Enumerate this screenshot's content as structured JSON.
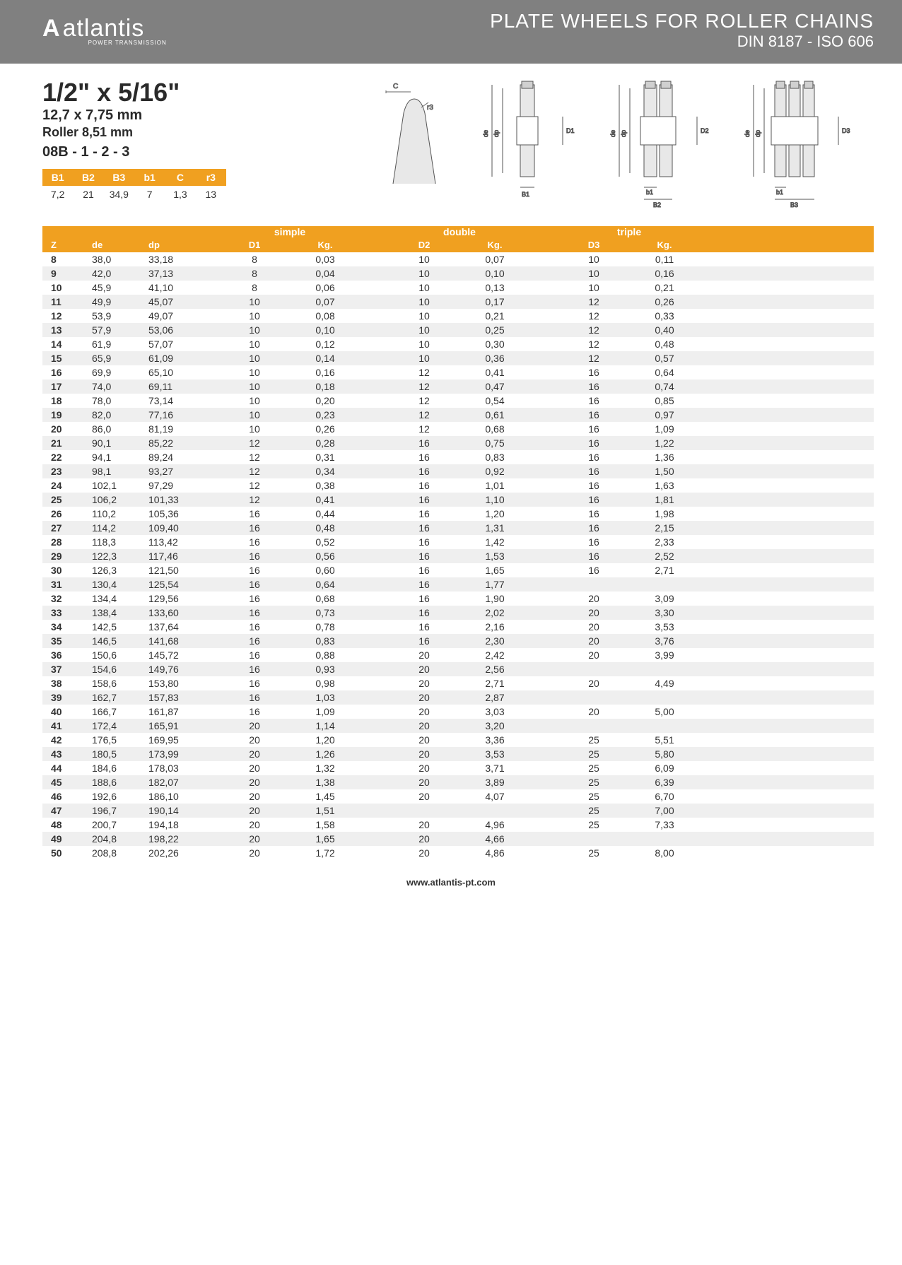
{
  "header": {
    "logo_icon": "A",
    "logo_text": "atlantis",
    "logo_sub": "POWER TRANSMISSION",
    "title1": "PLATE WHEELS FOR ROLLER CHAINS",
    "title2": "DIN 8187 - ISO 606"
  },
  "spec": {
    "size": "1/2\" x 5/16\"",
    "mm": "12,7 x 7,75 mm",
    "roller": "Roller 8,51 mm",
    "code": "08B - 1 - 2 - 3"
  },
  "smallTable": {
    "headers": [
      "B1",
      "B2",
      "B3",
      "b1",
      "C",
      "r3"
    ],
    "values": [
      "7,2",
      "21",
      "34,9",
      "7",
      "1,3",
      "13"
    ]
  },
  "mainHeaders": {
    "z": "Z",
    "de": "de",
    "dp": "dp",
    "simple": "simple",
    "double": "double",
    "triple": "triple",
    "d1": "D1",
    "d2": "D2",
    "d3": "D3",
    "kg": "Kg."
  },
  "rows": [
    {
      "z": "8",
      "de": "38,0",
      "dp": "33,18",
      "d1": "8",
      "k1": "0,03",
      "d2": "10",
      "k2": "0,07",
      "d3": "10",
      "k3": "0,11"
    },
    {
      "z": "9",
      "de": "42,0",
      "dp": "37,13",
      "d1": "8",
      "k1": "0,04",
      "d2": "10",
      "k2": "0,10",
      "d3": "10",
      "k3": "0,16"
    },
    {
      "z": "10",
      "de": "45,9",
      "dp": "41,10",
      "d1": "8",
      "k1": "0,06",
      "d2": "10",
      "k2": "0,13",
      "d3": "10",
      "k3": "0,21"
    },
    {
      "z": "11",
      "de": "49,9",
      "dp": "45,07",
      "d1": "10",
      "k1": "0,07",
      "d2": "10",
      "k2": "0,17",
      "d3": "12",
      "k3": "0,26"
    },
    {
      "z": "12",
      "de": "53,9",
      "dp": "49,07",
      "d1": "10",
      "k1": "0,08",
      "d2": "10",
      "k2": "0,21",
      "d3": "12",
      "k3": "0,33"
    },
    {
      "z": "13",
      "de": "57,9",
      "dp": "53,06",
      "d1": "10",
      "k1": "0,10",
      "d2": "10",
      "k2": "0,25",
      "d3": "12",
      "k3": "0,40"
    },
    {
      "z": "14",
      "de": "61,9",
      "dp": "57,07",
      "d1": "10",
      "k1": "0,12",
      "d2": "10",
      "k2": "0,30",
      "d3": "12",
      "k3": "0,48"
    },
    {
      "z": "15",
      "de": "65,9",
      "dp": "61,09",
      "d1": "10",
      "k1": "0,14",
      "d2": "10",
      "k2": "0,36",
      "d3": "12",
      "k3": "0,57"
    },
    {
      "z": "16",
      "de": "69,9",
      "dp": "65,10",
      "d1": "10",
      "k1": "0,16",
      "d2": "12",
      "k2": "0,41",
      "d3": "16",
      "k3": "0,64"
    },
    {
      "z": "17",
      "de": "74,0",
      "dp": "69,11",
      "d1": "10",
      "k1": "0,18",
      "d2": "12",
      "k2": "0,47",
      "d3": "16",
      "k3": "0,74"
    },
    {
      "z": "18",
      "de": "78,0",
      "dp": "73,14",
      "d1": "10",
      "k1": "0,20",
      "d2": "12",
      "k2": "0,54",
      "d3": "16",
      "k3": "0,85"
    },
    {
      "z": "19",
      "de": "82,0",
      "dp": "77,16",
      "d1": "10",
      "k1": "0,23",
      "d2": "12",
      "k2": "0,61",
      "d3": "16",
      "k3": "0,97"
    },
    {
      "z": "20",
      "de": "86,0",
      "dp": "81,19",
      "d1": "10",
      "k1": "0,26",
      "d2": "12",
      "k2": "0,68",
      "d3": "16",
      "k3": "1,09"
    },
    {
      "z": "21",
      "de": "90,1",
      "dp": "85,22",
      "d1": "12",
      "k1": "0,28",
      "d2": "16",
      "k2": "0,75",
      "d3": "16",
      "k3": "1,22"
    },
    {
      "z": "22",
      "de": "94,1",
      "dp": "89,24",
      "d1": "12",
      "k1": "0,31",
      "d2": "16",
      "k2": "0,83",
      "d3": "16",
      "k3": "1,36"
    },
    {
      "z": "23",
      "de": "98,1",
      "dp": "93,27",
      "d1": "12",
      "k1": "0,34",
      "d2": "16",
      "k2": "0,92",
      "d3": "16",
      "k3": "1,50"
    },
    {
      "z": "24",
      "de": "102,1",
      "dp": "97,29",
      "d1": "12",
      "k1": "0,38",
      "d2": "16",
      "k2": "1,01",
      "d3": "16",
      "k3": "1,63"
    },
    {
      "z": "25",
      "de": "106,2",
      "dp": "101,33",
      "d1": "12",
      "k1": "0,41",
      "d2": "16",
      "k2": "1,10",
      "d3": "16",
      "k3": "1,81"
    },
    {
      "z": "26",
      "de": "110,2",
      "dp": "105,36",
      "d1": "16",
      "k1": "0,44",
      "d2": "16",
      "k2": "1,20",
      "d3": "16",
      "k3": "1,98"
    },
    {
      "z": "27",
      "de": "114,2",
      "dp": "109,40",
      "d1": "16",
      "k1": "0,48",
      "d2": "16",
      "k2": "1,31",
      "d3": "16",
      "k3": "2,15"
    },
    {
      "z": "28",
      "de": "118,3",
      "dp": "113,42",
      "d1": "16",
      "k1": "0,52",
      "d2": "16",
      "k2": "1,42",
      "d3": "16",
      "k3": "2,33"
    },
    {
      "z": "29",
      "de": "122,3",
      "dp": "117,46",
      "d1": "16",
      "k1": "0,56",
      "d2": "16",
      "k2": "1,53",
      "d3": "16",
      "k3": "2,52"
    },
    {
      "z": "30",
      "de": "126,3",
      "dp": "121,50",
      "d1": "16",
      "k1": "0,60",
      "d2": "16",
      "k2": "1,65",
      "d3": "16",
      "k3": "2,71"
    },
    {
      "z": "31",
      "de": "130,4",
      "dp": "125,54",
      "d1": "16",
      "k1": "0,64",
      "d2": "16",
      "k2": "1,77",
      "d3": "",
      "k3": ""
    },
    {
      "z": "32",
      "de": "134,4",
      "dp": "129,56",
      "d1": "16",
      "k1": "0,68",
      "d2": "16",
      "k2": "1,90",
      "d3": "20",
      "k3": "3,09"
    },
    {
      "z": "33",
      "de": "138,4",
      "dp": "133,60",
      "d1": "16",
      "k1": "0,73",
      "d2": "16",
      "k2": "2,02",
      "d3": "20",
      "k3": "3,30"
    },
    {
      "z": "34",
      "de": "142,5",
      "dp": "137,64",
      "d1": "16",
      "k1": "0,78",
      "d2": "16",
      "k2": "2,16",
      "d3": "20",
      "k3": "3,53"
    },
    {
      "z": "35",
      "de": "146,5",
      "dp": "141,68",
      "d1": "16",
      "k1": "0,83",
      "d2": "16",
      "k2": "2,30",
      "d3": "20",
      "k3": "3,76"
    },
    {
      "z": "36",
      "de": "150,6",
      "dp": "145,72",
      "d1": "16",
      "k1": "0,88",
      "d2": "20",
      "k2": "2,42",
      "d3": "20",
      "k3": "3,99"
    },
    {
      "z": "37",
      "de": "154,6",
      "dp": "149,76",
      "d1": "16",
      "k1": "0,93",
      "d2": "20",
      "k2": "2,56",
      "d3": "",
      "k3": ""
    },
    {
      "z": "38",
      "de": "158,6",
      "dp": "153,80",
      "d1": "16",
      "k1": "0,98",
      "d2": "20",
      "k2": "2,71",
      "d3": "20",
      "k3": "4,49"
    },
    {
      "z": "39",
      "de": "162,7",
      "dp": "157,83",
      "d1": "16",
      "k1": "1,03",
      "d2": "20",
      "k2": "2,87",
      "d3": "",
      "k3": ""
    },
    {
      "z": "40",
      "de": "166,7",
      "dp": "161,87",
      "d1": "16",
      "k1": "1,09",
      "d2": "20",
      "k2": "3,03",
      "d3": "20",
      "k3": "5,00"
    },
    {
      "z": "41",
      "de": "172,4",
      "dp": "165,91",
      "d1": "20",
      "k1": "1,14",
      "d2": "20",
      "k2": "3,20",
      "d3": "",
      "k3": ""
    },
    {
      "z": "42",
      "de": "176,5",
      "dp": "169,95",
      "d1": "20",
      "k1": "1,20",
      "d2": "20",
      "k2": "3,36",
      "d3": "25",
      "k3": "5,51"
    },
    {
      "z": "43",
      "de": "180,5",
      "dp": "173,99",
      "d1": "20",
      "k1": "1,26",
      "d2": "20",
      "k2": "3,53",
      "d3": "25",
      "k3": "5,80"
    },
    {
      "z": "44",
      "de": "184,6",
      "dp": "178,03",
      "d1": "20",
      "k1": "1,32",
      "d2": "20",
      "k2": "3,71",
      "d3": "25",
      "k3": "6,09"
    },
    {
      "z": "45",
      "de": "188,6",
      "dp": "182,07",
      "d1": "20",
      "k1": "1,38",
      "d2": "20",
      "k2": "3,89",
      "d3": "25",
      "k3": "6,39"
    },
    {
      "z": "46",
      "de": "192,6",
      "dp": "186,10",
      "d1": "20",
      "k1": "1,45",
      "d2": "20",
      "k2": "4,07",
      "d3": "25",
      "k3": "6,70"
    },
    {
      "z": "47",
      "de": "196,7",
      "dp": "190,14",
      "d1": "20",
      "k1": "1,51",
      "d2": "",
      "k2": "",
      "d3": "25",
      "k3": "7,00"
    },
    {
      "z": "48",
      "de": "200,7",
      "dp": "194,18",
      "d1": "20",
      "k1": "1,58",
      "d2": "20",
      "k2": "4,96",
      "d3": "25",
      "k3": "7,33"
    },
    {
      "z": "49",
      "de": "204,8",
      "dp": "198,22",
      "d1": "20",
      "k1": "1,65",
      "d2": "20",
      "k2": "4,66",
      "d3": "",
      "k3": ""
    },
    {
      "z": "50",
      "de": "208,8",
      "dp": "202,26",
      "d1": "20",
      "k1": "1,72",
      "d2": "20",
      "k2": "4,86",
      "d3": "25",
      "k3": "8,00"
    }
  ],
  "footer": "www.atlantis-pt.com",
  "colors": {
    "header_bg": "#808080",
    "accent": "#f0a020",
    "row_alt": "#efefef"
  }
}
